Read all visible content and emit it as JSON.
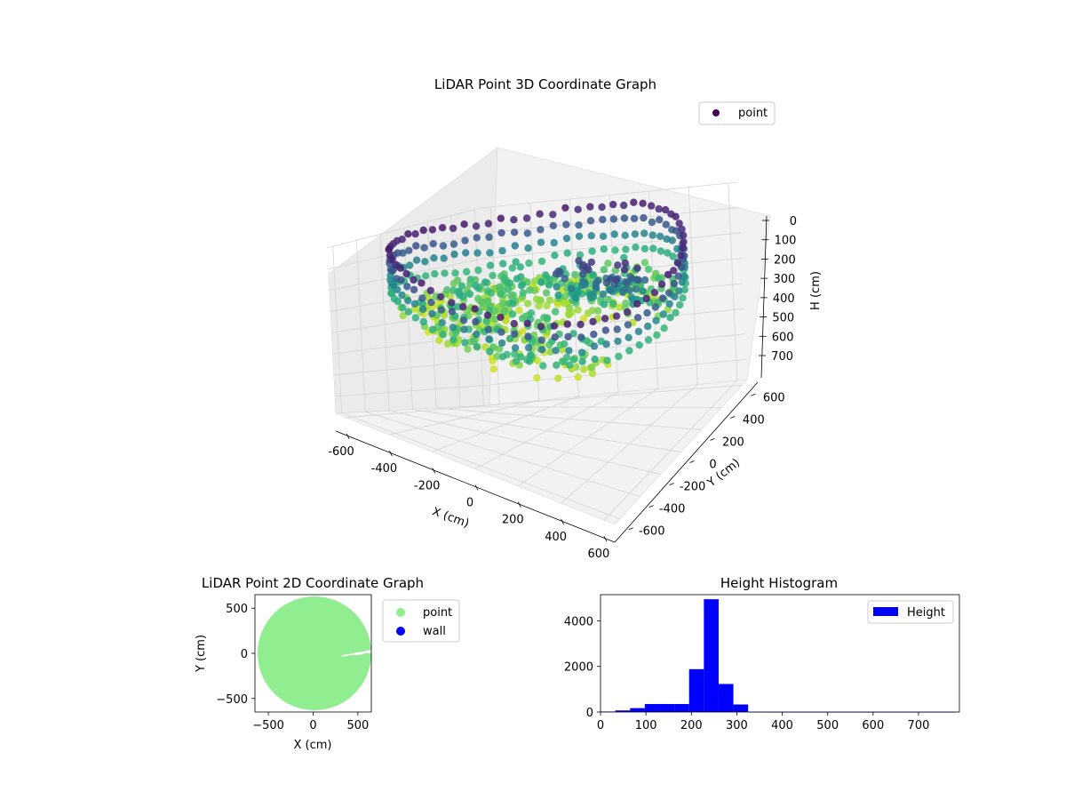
{
  "chart_data": [
    {
      "type": "scatter",
      "title": "LiDAR Point 3D Coordinate Graph",
      "xlabel": "X (cm)",
      "ylabel": "Y (cm)",
      "zlabel": "H (cm)",
      "xlim": [
        -650,
        650
      ],
      "ylim": [
        -650,
        650
      ],
      "zlim": [
        0,
        780
      ],
      "z_inverted": true,
      "x_ticks": [
        -600,
        -400,
        -200,
        0,
        200,
        400,
        600
      ],
      "y_ticks": [
        -600,
        -400,
        -200,
        0,
        200,
        400,
        600
      ],
      "z_ticks": [
        0,
        100,
        200,
        300,
        400,
        500,
        600,
        700
      ],
      "colormap": "viridis",
      "legend": {
        "entries": [
          {
            "name": "point",
            "color": "#440154"
          }
        ],
        "location": "top-right"
      },
      "grid": true,
      "series": [
        {
          "name": "point",
          "description_of_shape": "ring of points around radius ~630 cm, heights 0-250 cm, inner surface near 200-300 cm"
        }
      ]
    },
    {
      "type": "scatter",
      "title": "LiDAR Point 2D Coordinate Graph",
      "xlabel": "X (cm)",
      "ylabel": "Y (cm)",
      "xlim": [
        -650,
        650
      ],
      "ylim": [
        -650,
        650
      ],
      "x_ticks": [
        -500,
        0,
        500
      ],
      "y_ticks": [
        -500,
        0,
        500
      ],
      "legend": {
        "entries": [
          {
            "name": "point",
            "color": "#90ee90"
          },
          {
            "name": "wall",
            "color": "#0000ff"
          }
        ],
        "location": "outside-right"
      },
      "series": [
        {
          "name": "point",
          "color": "#90ee90",
          "shape": "filled disc radius ~630 centered at (0,0)"
        },
        {
          "name": "wall",
          "color": "#0000ff",
          "values": []
        }
      ]
    },
    {
      "type": "bar",
      "title": "Height Histogram",
      "xlabel": "",
      "ylabel": "",
      "xlim": [
        0,
        790
      ],
      "ylim": [
        0,
        5150
      ],
      "x_ticks": [
        0,
        100,
        200,
        300,
        400,
        500,
        600,
        700
      ],
      "y_ticks": [
        0,
        2000,
        4000
      ],
      "legend": {
        "entries": [
          {
            "name": "Height",
            "color": "#0000ff"
          }
        ],
        "location": "top-right"
      },
      "bin_width": 32.5,
      "bins": [
        {
          "x0": 0,
          "x1": 32.5,
          "count": 20
        },
        {
          "x0": 32.5,
          "x1": 65,
          "count": 70
        },
        {
          "x0": 65,
          "x1": 97.5,
          "count": 170
        },
        {
          "x0": 97.5,
          "x1": 130,
          "count": 350
        },
        {
          "x0": 130,
          "x1": 162.5,
          "count": 350
        },
        {
          "x0": 162.5,
          "x1": 195,
          "count": 350
        },
        {
          "x0": 195,
          "x1": 227.5,
          "count": 1880
        },
        {
          "x0": 227.5,
          "x1": 260,
          "count": 4950
        },
        {
          "x0": 260,
          "x1": 292.5,
          "count": 1230
        },
        {
          "x0": 292.5,
          "x1": 325,
          "count": 330
        },
        {
          "x0": 325,
          "x1": 357.5,
          "count": 5
        },
        {
          "x0": 357.5,
          "x1": 390,
          "count": 3
        },
        {
          "x0": 390,
          "x1": 422.5,
          "count": 2
        },
        {
          "x0": 422.5,
          "x1": 455,
          "count": 2
        },
        {
          "x0": 455,
          "x1": 487.5,
          "count": 2
        },
        {
          "x0": 487.5,
          "x1": 520,
          "count": 2
        },
        {
          "x0": 520,
          "x1": 552.5,
          "count": 2
        },
        {
          "x0": 552.5,
          "x1": 585,
          "count": 2
        },
        {
          "x0": 585,
          "x1": 617.5,
          "count": 2
        },
        {
          "x0": 617.5,
          "x1": 650,
          "count": 2
        },
        {
          "x0": 650,
          "x1": 682.5,
          "count": 2
        },
        {
          "x0": 682.5,
          "x1": 715,
          "count": 2
        },
        {
          "x0": 715,
          "x1": 747.5,
          "count": 2
        },
        {
          "x0": 747.5,
          "x1": 780,
          "count": 2
        }
      ]
    }
  ]
}
